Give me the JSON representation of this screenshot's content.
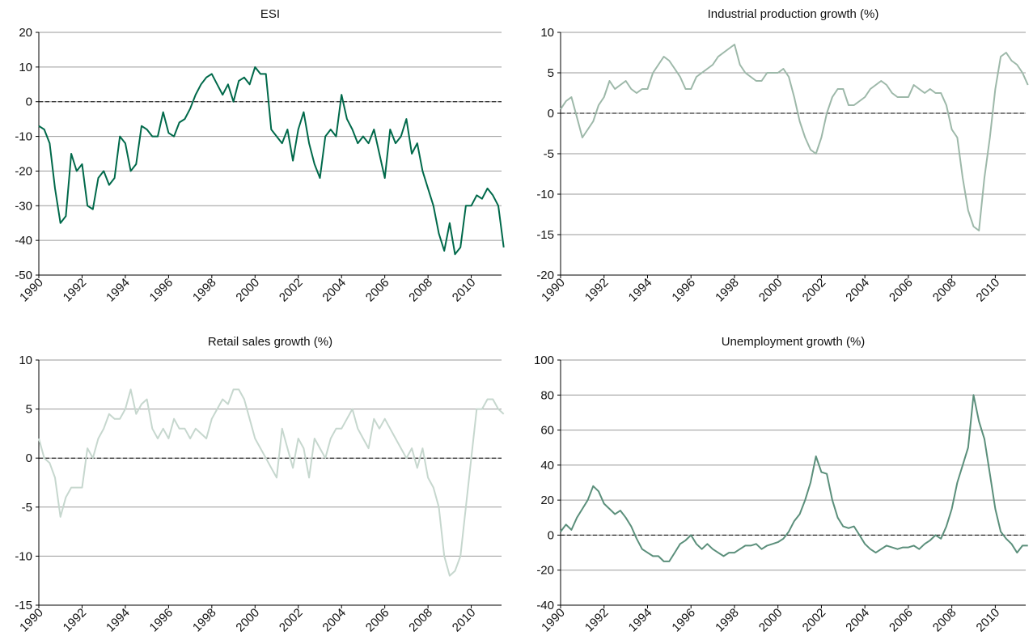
{
  "chart_data": [
    {
      "type": "line",
      "title": "ESI",
      "color": "#00694a",
      "x": [
        1990,
        1990.25,
        1990.5,
        1990.75,
        1991,
        1991.25,
        1991.5,
        1991.75,
        1992,
        1992.25,
        1992.5,
        1992.75,
        1993,
        1993.25,
        1993.5,
        1993.75,
        1994,
        1994.25,
        1994.5,
        1994.75,
        1995,
        1995.25,
        1995.5,
        1995.75,
        1996,
        1996.25,
        1996.5,
        1996.75,
        1997,
        1997.25,
        1997.5,
        1997.75,
        1998,
        1998.25,
        1998.5,
        1998.75,
        1999,
        1999.25,
        1999.5,
        1999.75,
        2000,
        2000.25,
        2000.5,
        2000.75,
        2001,
        2001.25,
        2001.5,
        2001.75,
        2002,
        2002.25,
        2002.5,
        2002.75,
        2003,
        2003.25,
        2003.5,
        2003.75,
        2004,
        2004.25,
        2004.5,
        2004.75,
        2005,
        2005.25,
        2005.5,
        2005.75,
        2006,
        2006.25,
        2006.5,
        2006.75,
        2007,
        2007.25,
        2007.5,
        2007.75,
        2008,
        2008.25,
        2008.5,
        2008.75,
        2009,
        2009.25,
        2009.5,
        2009.75,
        2010,
        2010.25,
        2010.5,
        2010.75,
        2011,
        2011.25,
        2011.5
      ],
      "values": [
        -7,
        -8,
        -12,
        -25,
        -35,
        -33,
        -15,
        -20,
        -18,
        -30,
        -31,
        -22,
        -20,
        -24,
        -22,
        -10,
        -12,
        -20,
        -18,
        -7,
        -8,
        -10,
        -10,
        -3,
        -9,
        -10,
        -6,
        -5,
        -2,
        2,
        5,
        7,
        8,
        5,
        2,
        5,
        0,
        6,
        7,
        5,
        10,
        8,
        8,
        -8,
        -10,
        -12,
        -8,
        -17,
        -8,
        -3,
        -12,
        -18,
        -22,
        -10,
        -8,
        -10,
        2,
        -5,
        -8,
        -12,
        -10,
        -12,
        -8,
        -15,
        -22,
        -8,
        -12,
        -10,
        -5,
        -15,
        -12,
        -20,
        -25,
        -30,
        -38,
        -43,
        -35,
        -44,
        -42,
        -30,
        -30,
        -27,
        -28,
        -25,
        -27,
        -30,
        -42
      ],
      "xlim": [
        1990,
        2011.4
      ],
      "xticks": [
        1990,
        1992,
        1994,
        1996,
        1998,
        2000,
        2002,
        2004,
        2006,
        2008,
        2010
      ],
      "ylim": [
        -50,
        20
      ],
      "yticks": [
        -50,
        -40,
        -30,
        -20,
        -10,
        0,
        10,
        20
      ],
      "grid": true
    },
    {
      "type": "line",
      "title": "Industrial production growth (%)",
      "color": "#9db8a9",
      "x": [
        1990,
        1990.25,
        1990.5,
        1990.75,
        1991,
        1991.25,
        1991.5,
        1991.75,
        1992,
        1992.25,
        1992.5,
        1992.75,
        1993,
        1993.25,
        1993.5,
        1993.75,
        1994,
        1994.25,
        1994.5,
        1994.75,
        1995,
        1995.25,
        1995.5,
        1995.75,
        1996,
        1996.25,
        1996.5,
        1996.75,
        1997,
        1997.25,
        1997.5,
        1997.75,
        1998,
        1998.25,
        1998.5,
        1998.75,
        1999,
        1999.25,
        1999.5,
        1999.75,
        2000,
        2000.25,
        2000.5,
        2000.75,
        2001,
        2001.25,
        2001.5,
        2001.75,
        2002,
        2002.25,
        2002.5,
        2002.75,
        2003,
        2003.25,
        2003.5,
        2003.75,
        2004,
        2004.25,
        2004.5,
        2004.75,
        2005,
        2005.25,
        2005.5,
        2005.75,
        2006,
        2006.25,
        2006.5,
        2006.75,
        2007,
        2007.25,
        2007.5,
        2007.75,
        2008,
        2008.25,
        2008.5,
        2008.75,
        2009,
        2009.25,
        2009.5,
        2009.75,
        2010,
        2010.25,
        2010.5,
        2010.75,
        2011,
        2011.25,
        2011.5
      ],
      "values": [
        0.5,
        1.5,
        2,
        -0.5,
        -3,
        -2,
        -1,
        1,
        2,
        4,
        3,
        3.5,
        4,
        3,
        2.5,
        3,
        3,
        5,
        6,
        7,
        6.5,
        5.5,
        4.5,
        3,
        3,
        4.5,
        5,
        5.5,
        6,
        7,
        7.5,
        8,
        8.5,
        6,
        5,
        4.5,
        4,
        4,
        5,
        5,
        5,
        5.5,
        4.5,
        2,
        -1,
        -3,
        -4.5,
        -5,
        -3,
        0,
        2,
        3,
        3,
        1,
        1,
        1.5,
        2,
        3,
        3.5,
        4,
        3.5,
        2.5,
        2,
        2,
        2,
        3.5,
        3,
        2.5,
        3,
        2.5,
        2.5,
        1,
        -2,
        -3,
        -8,
        -12,
        -14,
        -14.5,
        -8,
        -3,
        3,
        7,
        7.5,
        6.5,
        6,
        5,
        3.5
      ],
      "xlim": [
        1990,
        2011.4
      ],
      "xticks": [
        1990,
        1992,
        1994,
        1996,
        1998,
        2000,
        2002,
        2004,
        2006,
        2008,
        2010
      ],
      "ylim": [
        -20,
        10
      ],
      "yticks": [
        -20,
        -15,
        -10,
        -5,
        0,
        5,
        10
      ],
      "grid": true
    },
    {
      "type": "line",
      "title": "Retail sales growth (%)",
      "color": "#c6d7ce",
      "x": [
        1990,
        1990.25,
        1990.5,
        1990.75,
        1991,
        1991.25,
        1991.5,
        1991.75,
        1992,
        1992.25,
        1992.5,
        1992.75,
        1993,
        1993.25,
        1993.5,
        1993.75,
        1994,
        1994.25,
        1994.5,
        1994.75,
        1995,
        1995.25,
        1995.5,
        1995.75,
        1996,
        1996.25,
        1996.5,
        1996.75,
        1997,
        1997.25,
        1997.5,
        1997.75,
        1998,
        1998.25,
        1998.5,
        1998.75,
        1999,
        1999.25,
        1999.5,
        1999.75,
        2000,
        2000.25,
        2000.5,
        2000.75,
        2001,
        2001.25,
        2001.5,
        2001.75,
        2002,
        2002.25,
        2002.5,
        2002.75,
        2003,
        2003.25,
        2003.5,
        2003.75,
        2004,
        2004.25,
        2004.5,
        2004.75,
        2005,
        2005.25,
        2005.5,
        2005.75,
        2006,
        2006.25,
        2006.5,
        2006.75,
        2007,
        2007.25,
        2007.5,
        2007.75,
        2008,
        2008.25,
        2008.5,
        2008.75,
        2009,
        2009.25,
        2009.5,
        2009.75,
        2010,
        2010.25,
        2010.5,
        2010.75,
        2011,
        2011.25,
        2011.5
      ],
      "values": [
        2,
        0,
        -0.5,
        -2,
        -6,
        -4,
        -3,
        -3,
        -3,
        1,
        0,
        2,
        3,
        4.5,
        4,
        4,
        5,
        7,
        4.5,
        5.5,
        6,
        3,
        2,
        3,
        2,
        4,
        3,
        3,
        2,
        3,
        2.5,
        2,
        4,
        5,
        6,
        5.5,
        7,
        7,
        6,
        4,
        2,
        1,
        0,
        -1,
        -2,
        3,
        1,
        -1,
        2,
        1,
        -2,
        2,
        1,
        0,
        2,
        3,
        3,
        4,
        5,
        3,
        2,
        1,
        4,
        3,
        4,
        3,
        2,
        1,
        0,
        1,
        -1,
        1,
        -2,
        -3,
        -5,
        -10,
        -12,
        -11.5,
        -10,
        -5,
        0,
        5,
        5,
        6,
        6,
        5,
        4.5
      ],
      "xlim": [
        1990,
        2011.4
      ],
      "xticks": [
        1990,
        1992,
        1994,
        1996,
        1998,
        2000,
        2002,
        2004,
        2006,
        2008,
        2010
      ],
      "ylim": [
        -15,
        10
      ],
      "yticks": [
        -15,
        -10,
        -5,
        0,
        5,
        10
      ],
      "grid": true
    },
    {
      "type": "line",
      "title": "Unemployment growth (%)",
      "color": "#5b8f7b",
      "x": [
        1990,
        1990.25,
        1990.5,
        1990.75,
        1991,
        1991.25,
        1991.5,
        1991.75,
        1992,
        1992.25,
        1992.5,
        1992.75,
        1993,
        1993.25,
        1993.5,
        1993.75,
        1994,
        1994.25,
        1994.5,
        1994.75,
        1995,
        1995.25,
        1995.5,
        1995.75,
        1996,
        1996.25,
        1996.5,
        1996.75,
        1997,
        1997.25,
        1997.5,
        1997.75,
        1998,
        1998.25,
        1998.5,
        1998.75,
        1999,
        1999.25,
        1999.5,
        1999.75,
        2000,
        2000.25,
        2000.5,
        2000.75,
        2001,
        2001.25,
        2001.5,
        2001.75,
        2002,
        2002.25,
        2002.5,
        2002.75,
        2003,
        2003.25,
        2003.5,
        2003.75,
        2004,
        2004.25,
        2004.5,
        2004.75,
        2005,
        2005.25,
        2005.5,
        2005.75,
        2006,
        2006.25,
        2006.5,
        2006.75,
        2007,
        2007.25,
        2007.5,
        2007.75,
        2008,
        2008.25,
        2008.5,
        2008.75,
        2009,
        2009.25,
        2009.5,
        2009.75,
        2010,
        2010.25,
        2010.5,
        2010.75,
        2011,
        2011.25,
        2011.5
      ],
      "values": [
        2,
        6,
        3,
        10,
        15,
        20,
        28,
        25,
        18,
        15,
        12,
        14,
        10,
        5,
        -2,
        -8,
        -10,
        -12,
        -12,
        -15,
        -15,
        -10,
        -5,
        -3,
        0,
        -5,
        -8,
        -5,
        -8,
        -10,
        -12,
        -10,
        -10,
        -8,
        -6,
        -6,
        -5,
        -8,
        -6,
        -5,
        -4,
        -2,
        2,
        8,
        12,
        20,
        30,
        45,
        36,
        35,
        20,
        10,
        5,
        4,
        5,
        0,
        -5,
        -8,
        -10,
        -8,
        -6,
        -7,
        -8,
        -7,
        -7,
        -6,
        -8,
        -5,
        -3,
        0,
        -2,
        5,
        15,
        30,
        40,
        50,
        80,
        65,
        55,
        35,
        15,
        2,
        -2,
        -5,
        -10,
        -6,
        -6
      ],
      "xlim": [
        1990,
        2011.4
      ],
      "xticks": [
        1990,
        1992,
        1994,
        1996,
        1998,
        2000,
        2002,
        2004,
        2006,
        2008,
        2010
      ],
      "ylim": [
        -40,
        100
      ],
      "yticks": [
        -40,
        -20,
        0,
        20,
        40,
        60,
        80,
        100
      ],
      "grid": true
    }
  ]
}
